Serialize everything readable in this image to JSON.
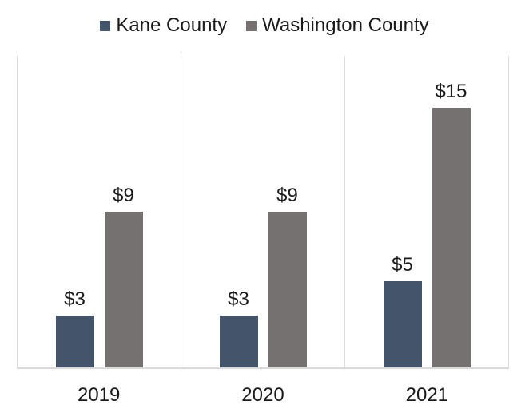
{
  "legend": {
    "items": [
      {
        "label": "Kane County",
        "color": "#44546A"
      },
      {
        "label": "Washington County",
        "color": "#767171"
      }
    ]
  },
  "chart_data": {
    "type": "bar",
    "title": "",
    "xlabel": "",
    "ylabel": "",
    "categories": [
      "2019",
      "2020",
      "2021"
    ],
    "series": [
      {
        "name": "Kane County",
        "color": "#44546A",
        "values": [
          3,
          3,
          5
        ],
        "labels": [
          "$3",
          "$3",
          "$5"
        ]
      },
      {
        "name": "Washington County",
        "color": "#767171",
        "values": [
          9,
          9,
          15
        ],
        "labels": [
          "$9",
          "$9",
          "$15"
        ]
      }
    ],
    "ylim": [
      0,
      18
    ],
    "y_axis_visible": false,
    "grid": "vertical category separators only",
    "legend_position": "top-center",
    "colors": {
      "gridline": "#DCDCDC",
      "axis_line": "#D9D9D9",
      "label_text": "#1A1A1A"
    }
  }
}
